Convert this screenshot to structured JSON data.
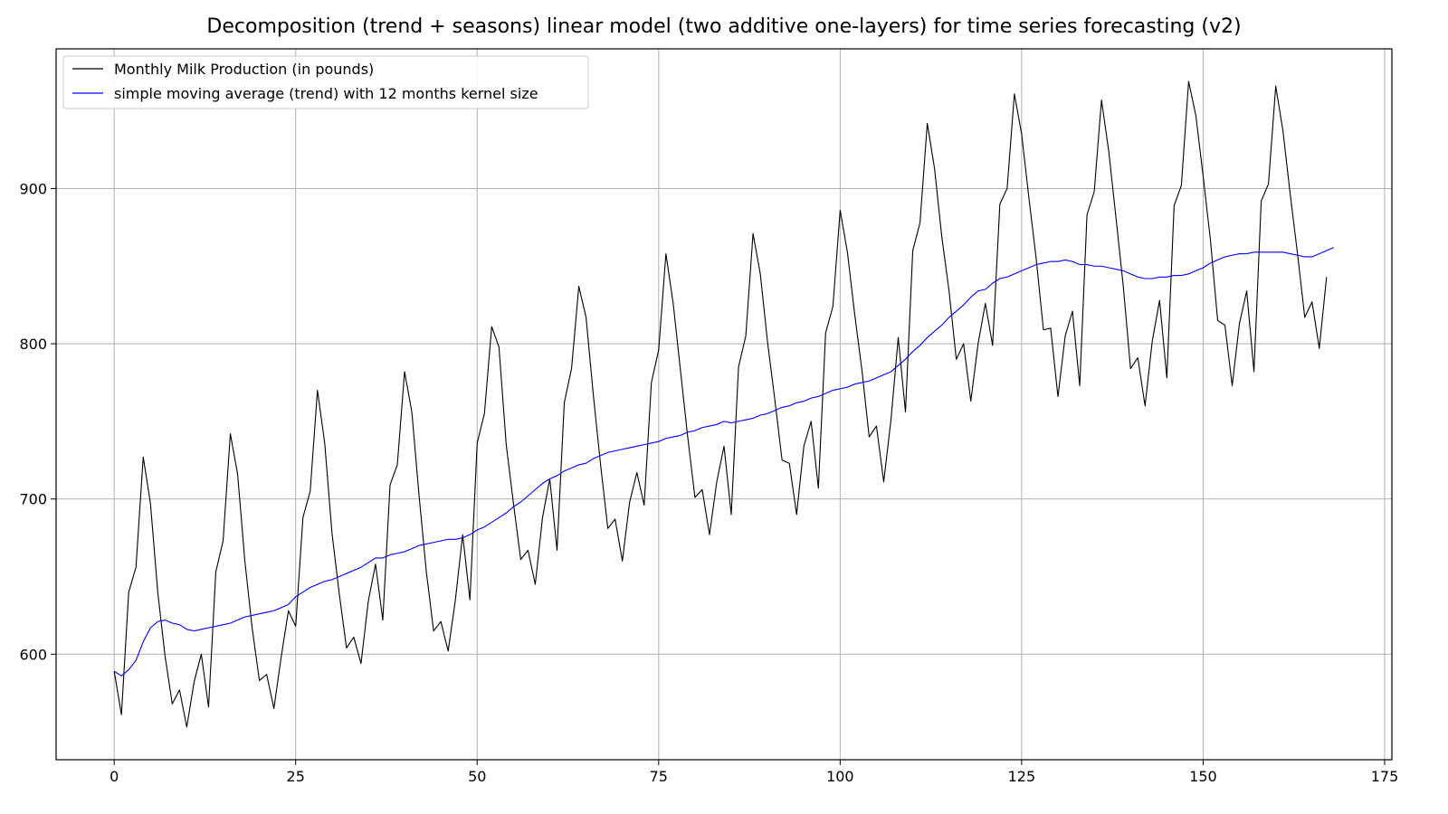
{
  "chart_data": {
    "type": "line",
    "title": "Decomposition (trend + seasons) linear model (two additive one-layers) for time series forecasting (v2)",
    "xlabel": "",
    "ylabel": "",
    "xlim": [
      -8,
      176
    ],
    "ylim": [
      532,
      990
    ],
    "x_ticks": [
      0,
      25,
      50,
      75,
      100,
      125,
      150,
      175
    ],
    "y_ticks": [
      600,
      700,
      800,
      900
    ],
    "grid": true,
    "legend_position": "upper-left",
    "series": [
      {
        "name": "Monthly Milk Production (in pounds)",
        "color": "#000000",
        "x_start": 0,
        "values": [
          589,
          561,
          640,
          656,
          727,
          697,
          640,
          599,
          568,
          577,
          553,
          582,
          600,
          566,
          653,
          673,
          742,
          716,
          660,
          617,
          583,
          587,
          565,
          598,
          628,
          618,
          688,
          705,
          770,
          736,
          678,
          639,
          604,
          611,
          594,
          634,
          658,
          622,
          709,
          722,
          782,
          756,
          702,
          653,
          615,
          621,
          602,
          635,
          677,
          635,
          736,
          755,
          811,
          798,
          735,
          697,
          661,
          667,
          645,
          688,
          713,
          667,
          762,
          784,
          837,
          817,
          767,
          722,
          681,
          687,
          660,
          698,
          717,
          696,
          775,
          796,
          858,
          826,
          783,
          740,
          701,
          706,
          677,
          711,
          734,
          690,
          785,
          805,
          871,
          845,
          801,
          764,
          725,
          723,
          690,
          734,
          750,
          707,
          807,
          824,
          886,
          859,
          819,
          783,
          740,
          747,
          711,
          751,
          804,
          756,
          860,
          878,
          942,
          913,
          869,
          834,
          790,
          800,
          763,
          800,
          826,
          799,
          890,
          900,
          961,
          935,
          894,
          855,
          809,
          810,
          766,
          805,
          821,
          773,
          883,
          898,
          957,
          924,
          881,
          837,
          784,
          791,
          760,
          802,
          828,
          778,
          889,
          902,
          969,
          947,
          908,
          867,
          815,
          812,
          773,
          813,
          834,
          782,
          892,
          903,
          966,
          937,
          896,
          858,
          817,
          827,
          797,
          843
        ]
      },
      {
        "name": "simple moving average (trend) with 12 months kernel size",
        "color": "#0000ff",
        "x_start": 0,
        "values": [
          589,
          586,
          590,
          596,
          608,
          617,
          621,
          622,
          620,
          619,
          616,
          615,
          616,
          617,
          618,
          619,
          620,
          622,
          624,
          625,
          626,
          627,
          628,
          630,
          632,
          637,
          640,
          643,
          645,
          647,
          648,
          650,
          652,
          654,
          656,
          659,
          662,
          662,
          664,
          665,
          666,
          668,
          670,
          671,
          672,
          673,
          674,
          674,
          675,
          677,
          680,
          682,
          685,
          688,
          691,
          695,
          698,
          702,
          706,
          710,
          713,
          715,
          718,
          720,
          722,
          723,
          726,
          728,
          730,
          731,
          732,
          733,
          734,
          735,
          736,
          737,
          739,
          740,
          741,
          743,
          744,
          746,
          747,
          748,
          750,
          749,
          750,
          751,
          752,
          754,
          755,
          757,
          759,
          760,
          762,
          763,
          765,
          766,
          768,
          770,
          771,
          772,
          774,
          775,
          776,
          778,
          780,
          782,
          786,
          790,
          795,
          799,
          804,
          808,
          812,
          817,
          821,
          825,
          830,
          834,
          835,
          839,
          842,
          843,
          845,
          847,
          849,
          851,
          852,
          853,
          853,
          854,
          853,
          851,
          851,
          850,
          850,
          849,
          848,
          847,
          845,
          843,
          842,
          842,
          843,
          843,
          844,
          844,
          845,
          847,
          849,
          852,
          854,
          856,
          857,
          858,
          858,
          859,
          859,
          859,
          859,
          859,
          858,
          857,
          856,
          856,
          858,
          860,
          862
        ]
      }
    ]
  }
}
